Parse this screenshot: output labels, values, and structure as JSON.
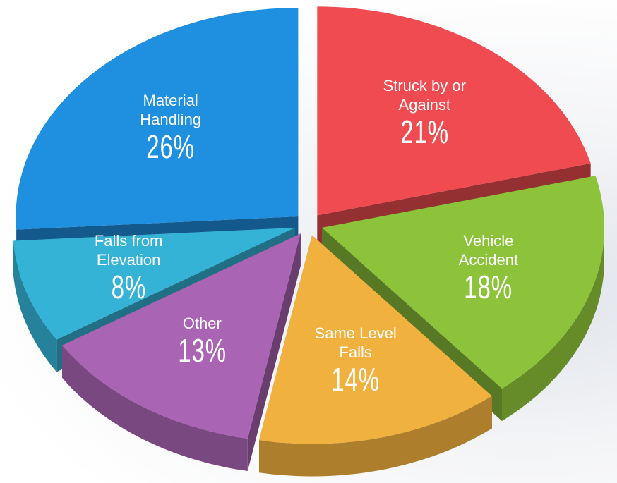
{
  "chart_data": {
    "type": "pie",
    "categories": [
      "Struck by or Against",
      "Vehicle Accident",
      "Same Level Falls",
      "Other",
      "Falls from Elevation",
      "Material Handling"
    ],
    "values": [
      21,
      18,
      14,
      13,
      8,
      26
    ],
    "value_labels": [
      "21%",
      "18%",
      "14%",
      "13%",
      "8%",
      "26%"
    ],
    "colors": [
      "#ef4b50",
      "#8dc23b",
      "#f0b13f",
      "#a964b3",
      "#35b3d6",
      "#1f8fe0"
    ]
  }
}
